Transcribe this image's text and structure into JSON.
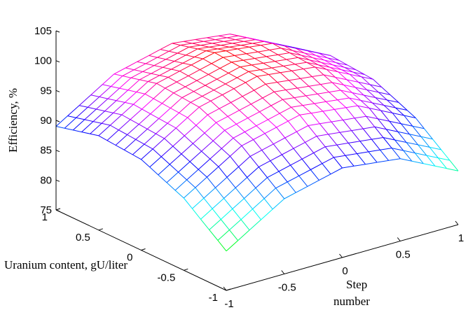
{
  "chart_data": {
    "type": "surface",
    "zlabel": "Efficiency, %",
    "ylabel": "Uranium content, gU/liter",
    "xlabel_line1": "Step",
    "xlabel_line2": "number",
    "x_range": [
      -1,
      1
    ],
    "y_range": [
      -1,
      1
    ],
    "z_range": [
      75,
      105
    ],
    "z_ticks": [
      "75",
      "80",
      "85",
      "90",
      "95",
      "100",
      "105"
    ],
    "y_ticks": [
      "1",
      "0.5",
      "0",
      "-0.5",
      "-1"
    ],
    "x_ticks": [
      "-1",
      "-0.5",
      "0",
      "0.5",
      "1"
    ],
    "colormap": "hsv",
    "grid": false,
    "mesh_resolution": 21,
    "surface_samples": {
      "x_values": [
        -1,
        -0.5,
        0,
        0.5,
        1
      ],
      "y_values": [
        -1,
        -0.5,
        0,
        0.5,
        1
      ],
      "z_rows_by_y": [
        [
          81.6,
          87.6,
          90.0,
          88.8,
          84.0
        ],
        [
          87.1,
          93.1,
          95.5,
          94.3,
          89.5
        ],
        [
          90.2,
          96.2,
          98.6,
          97.4,
          92.6
        ],
        [
          90.8,
          96.8,
          99.2,
          98.0,
          93.2
        ],
        [
          89.0,
          95.0,
          97.4,
          96.2,
          91.4
        ]
      ]
    }
  }
}
